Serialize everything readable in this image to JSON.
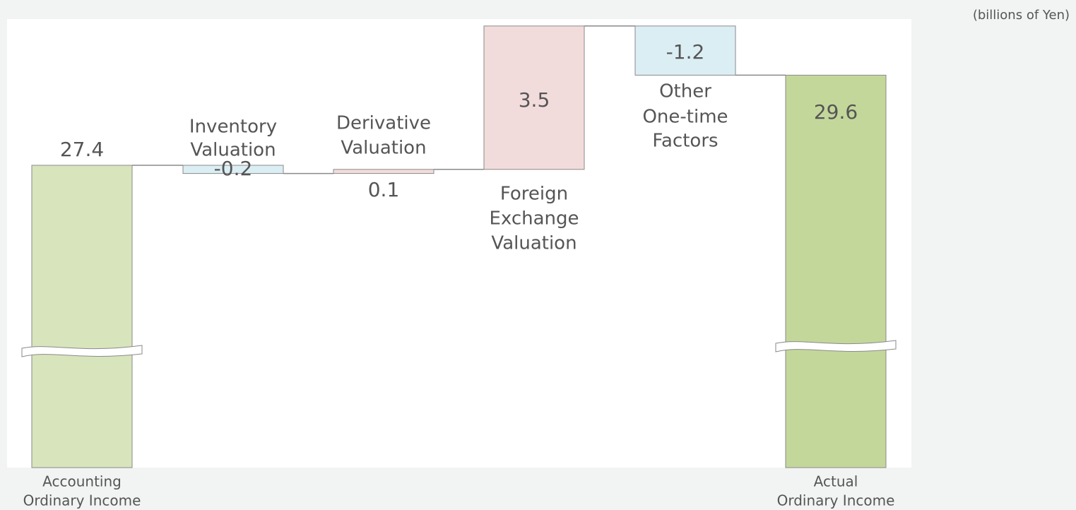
{
  "chart_data": {
    "type": "waterfall",
    "unit_label": "(billions of Yen)",
    "categories": [
      [
        "Accounting",
        "Ordinary Income"
      ],
      [
        "Inventory",
        "Valuation"
      ],
      [
        "Derivative",
        "Valuation"
      ],
      [
        "Foreign",
        "Exchange",
        "Valuation"
      ],
      [
        "Other",
        "One-time",
        "Factors"
      ],
      [
        "Actual",
        "Ordinary Income"
      ]
    ],
    "values": [
      27.4,
      -0.2,
      0.1,
      3.5,
      -1.2,
      29.6
    ],
    "colors": {
      "start_total": "#d8e4bc",
      "end_total": "#c4d79b",
      "increase": "#f2dcdb",
      "decrease": "#dbeef4"
    },
    "axis_break": true
  }
}
